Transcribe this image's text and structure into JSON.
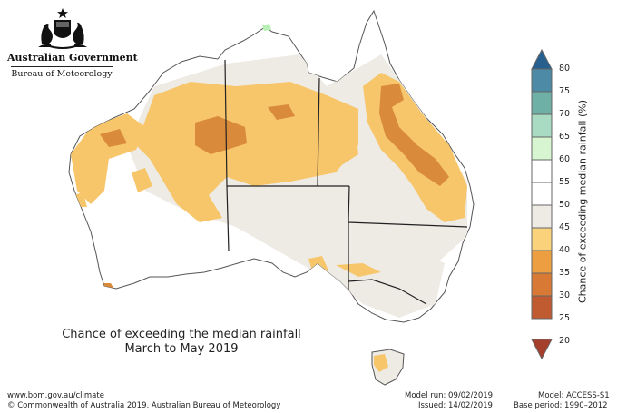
{
  "header": {
    "government": "Australian Government",
    "bureau": "Bureau of Meteorology"
  },
  "title": {
    "line1": "Chance of exceeding the median rainfall",
    "line2": "March to May 2019"
  },
  "legend": {
    "label": "Chance of exceeding median rainfall (%)",
    "ticks": [
      "80",
      "75",
      "70",
      "65",
      "60",
      "55",
      "50",
      "45",
      "40",
      "35",
      "30",
      "25",
      "20"
    ],
    "colors": [
      "#27608f",
      "#4c8aa6",
      "#6fb0a6",
      "#a8dbc1",
      "#d6f5d0",
      "#ffffff",
      "#ffffff",
      "#eeebe5",
      "#fbd27c",
      "#ec9e40",
      "#d87a35",
      "#bf5a31",
      "#a63e2c"
    ]
  },
  "colors": {
    "land_neutral": "#ffffff",
    "near_median": "#eeebe5",
    "chance_35_40": "#f7c66b",
    "chance_30_35": "#d98a3a",
    "wetter_60_65": "#b7efb5",
    "state_border": "#222222"
  },
  "footer": {
    "url": "www.bom.gov.au/climate",
    "copyright": "© Commonwealth of Australia 2019, Australian Bureau of Meteorology",
    "model_run": "Model run: 09/02/2019",
    "issued": "Issued: 14/02/2019",
    "model": "Model: ACCESS-S1",
    "base_period": "Base period: 1990–2012"
  }
}
